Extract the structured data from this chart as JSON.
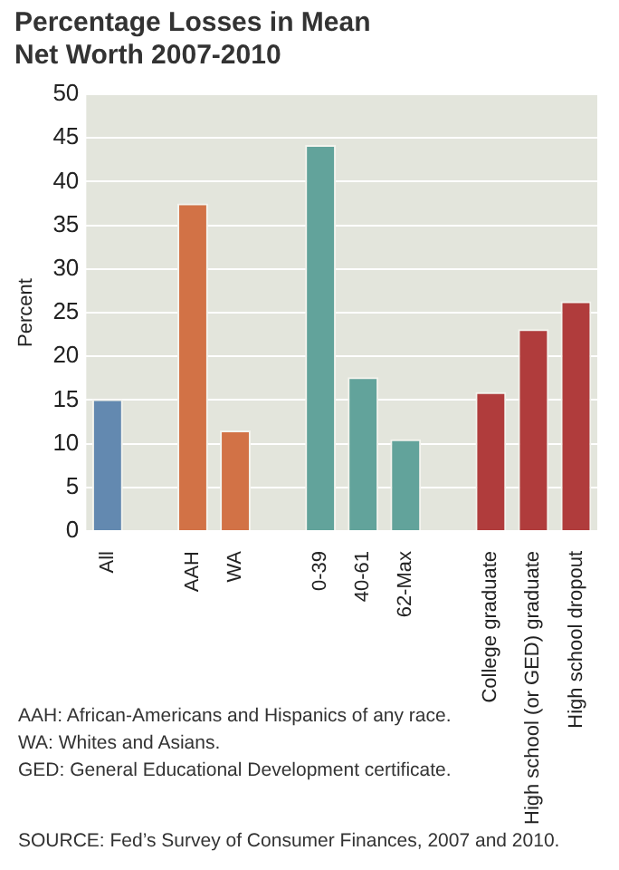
{
  "chart_data": {
    "type": "bar",
    "title": "Percentage Losses in Mean Net Worth 2007-2010",
    "ylabel": "Percent",
    "categories": [
      "All",
      null,
      "AAH",
      "WA",
      null,
      "0-39",
      "40-61",
      "62-Max",
      null,
      "College graduate",
      "High school (or GED) graduate",
      "High school dropout"
    ],
    "values": [
      15.1,
      null,
      37.5,
      11.5,
      null,
      44.2,
      17.6,
      10.5,
      null,
      15.9,
      23.1,
      26.3
    ],
    "colors": [
      "#6389b0",
      "#d27246",
      "#d27246",
      "#d27246",
      "#62a39b",
      "#62a39b",
      "#62a39b",
      "#62a39b",
      "#b03c3c",
      "#b03c3c",
      "#b03c3c",
      "#b03c3c"
    ],
    "ylim": [
      0,
      50
    ],
    "yticks": [
      0,
      5,
      10,
      15,
      20,
      25,
      30,
      35,
      40,
      45,
      50
    ],
    "grid": "y",
    "annotations": [
      "AAH: African-Americans and Hispanics of any race.",
      "WA: Whites and Asians.",
      "GED: General Educational Development certificate.",
      "SOURCE: Fed’s Survey of Consumer Finances, 2007 and 2010."
    ]
  }
}
